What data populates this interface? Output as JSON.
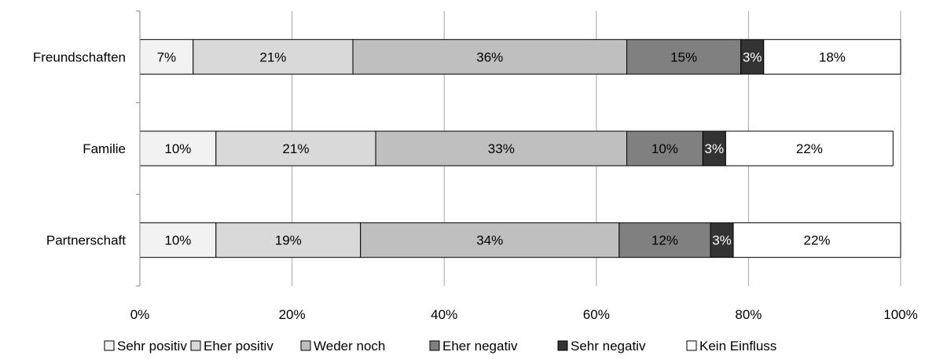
{
  "chart_data": {
    "type": "bar",
    "orientation": "horizontal",
    "stacked": true,
    "percent_stacked": true,
    "categories": [
      "Freundschaften",
      "Familie",
      "Partnerschaft"
    ],
    "series": [
      {
        "name": "Sehr positiv",
        "color": "#f2f2f2",
        "values": [
          7,
          10,
          10
        ],
        "labels": [
          "7%",
          "10%",
          "10%"
        ]
      },
      {
        "name": "Eher positiv",
        "color": "#d9d9d9",
        "values": [
          21,
          21,
          19
        ],
        "labels": [
          "21%",
          "21%",
          "19%"
        ]
      },
      {
        "name": "Weder noch",
        "color": "#bfbfbf",
        "values": [
          36,
          33,
          34
        ],
        "labels": [
          "36%",
          "33%",
          "34%"
        ]
      },
      {
        "name": "Eher negativ",
        "color": "#808080",
        "values": [
          15,
          10,
          12
        ],
        "labels": [
          "15%",
          "10%",
          "12%"
        ]
      },
      {
        "name": "Sehr negativ",
        "color": "#333333",
        "values": [
          3,
          3,
          3
        ],
        "labels": [
          "3%",
          "3%",
          "3%"
        ]
      },
      {
        "name": "Kein Einfluss",
        "color": "#ffffff",
        "values": [
          18,
          22,
          22
        ],
        "labels": [
          "18%",
          "22%",
          "22%"
        ]
      }
    ],
    "xlim": [
      0,
      100
    ],
    "x_ticks": [
      "0%",
      "20%",
      "40%",
      "60%",
      "80%",
      "100%"
    ],
    "grid": true,
    "legend_position": "bottom"
  }
}
